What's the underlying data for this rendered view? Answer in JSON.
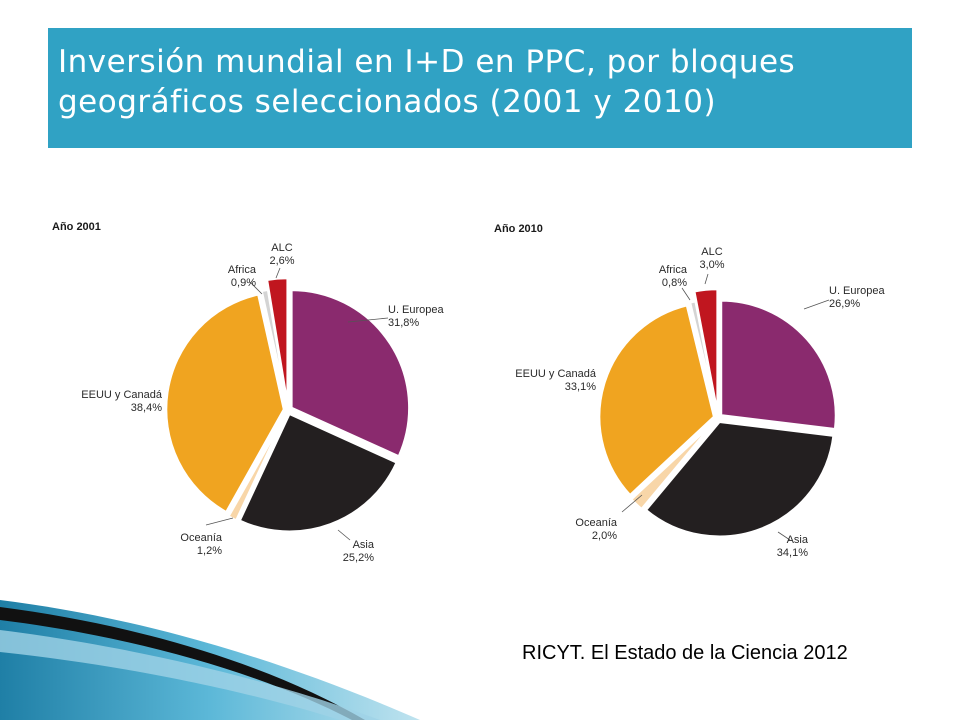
{
  "title": "Inversión mundial en I+D en PPC, por bloques geográficos seleccionados (2001 y 2010)",
  "source": "RICYT. El Estado de la Ciencia 2012",
  "colors": {
    "title_bar": "#30a2c4",
    "U. Europea": "#8a2a6e",
    "Asia": "#231f20",
    "Oceanía": "#f8d6a8",
    "EEUU y Canadá": "#f0a420",
    "Africa": "#d4d4d4",
    "ALC": "#c0161f"
  },
  "chart_data": [
    {
      "type": "pie",
      "title": "Año 2001",
      "slices": [
        {
          "label": "U. Europea",
          "value_text": "31,8%",
          "value": 31.8
        },
        {
          "label": "Asia",
          "value_text": "25,2%",
          "value": 25.2
        },
        {
          "label": "Oceanía",
          "value_text": "1,2%",
          "value": 1.2
        },
        {
          "label": "EEUU y Canadá",
          "value_text": "38,4%",
          "value": 38.4
        },
        {
          "label": "Africa",
          "value_text": "0,9%",
          "value": 0.9
        },
        {
          "label": "ALC",
          "value_text": "2,6%",
          "value": 2.6
        }
      ]
    },
    {
      "type": "pie",
      "title": "Año 2010",
      "slices": [
        {
          "label": "U. Europea",
          "value_text": "26,9%",
          "value": 26.9
        },
        {
          "label": "Asia",
          "value_text": "34,1%",
          "value": 34.1
        },
        {
          "label": "Oceanía",
          "value_text": "2,0%",
          "value": 2.0
        },
        {
          "label": "EEUU y Canadá",
          "value_text": "33,1%",
          "value": 33.1
        },
        {
          "label": "Africa",
          "value_text": "0,8%",
          "value": 0.8
        },
        {
          "label": "ALC",
          "value_text": "3,0%",
          "value": 3.0
        }
      ]
    }
  ]
}
